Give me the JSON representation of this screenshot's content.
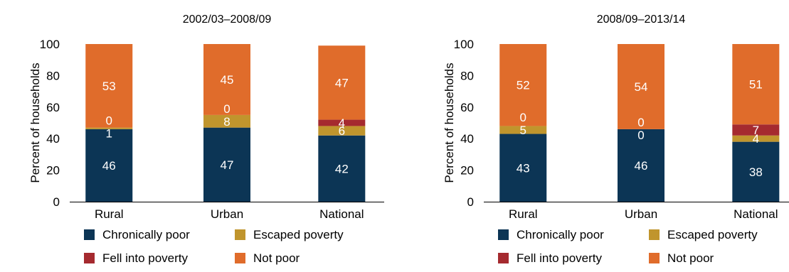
{
  "colors": {
    "chronically_poor": "#0c3555",
    "escaped_poverty": "#c0952d",
    "fell_into_poverty": "#a52a2f",
    "not_poor": "#e06c2b"
  },
  "legend": [
    {
      "key": "chronically_poor",
      "label": "Chronically poor"
    },
    {
      "key": "escaped_poverty",
      "label": "Escaped poverty"
    },
    {
      "key": "fell_into_poverty",
      "label": "Fell into poverty"
    },
    {
      "key": "not_poor",
      "label": "Not poor"
    }
  ],
  "chart_data": [
    {
      "type": "bar",
      "stacked": true,
      "title": "2002/03–2008/09",
      "ylabel": "Percent of households",
      "ylim": [
        0,
        100
      ],
      "yticks": [
        "0",
        "20",
        "40",
        "60",
        "80",
        "100"
      ],
      "categories": [
        "Rural",
        "Urban",
        "National"
      ],
      "series": [
        {
          "name": "Chronically poor",
          "color_key": "chronically_poor",
          "values": [
            46,
            47,
            42
          ],
          "labels": [
            "46",
            "47",
            "42"
          ]
        },
        {
          "name": "Escaped poverty",
          "color_key": "escaped_poverty",
          "values": [
            1,
            8,
            6
          ],
          "labels": [
            "1",
            "8",
            "6"
          ]
        },
        {
          "name": "Fell into poverty",
          "color_key": "fell_into_poverty",
          "values": [
            0,
            0,
            4
          ],
          "labels": [
            "0",
            "0",
            "4"
          ]
        },
        {
          "name": "Not poor",
          "color_key": "not_poor",
          "values": [
            53,
            45,
            47
          ],
          "labels": [
            "53",
            "45",
            "47"
          ]
        }
      ],
      "legend_position": "bottom"
    },
    {
      "type": "bar",
      "stacked": true,
      "title": "2008/09–2013/14",
      "ylabel": "Percent of households",
      "ylim": [
        0,
        100
      ],
      "yticks": [
        "0",
        "20",
        "40",
        "60",
        "80",
        "100"
      ],
      "categories": [
        "Rural",
        "Urban",
        "National"
      ],
      "series": [
        {
          "name": "Chronically poor",
          "color_key": "chronically_poor",
          "values": [
            43,
            46,
            38
          ],
          "labels": [
            "43",
            "46",
            "38"
          ]
        },
        {
          "name": "Escaped poverty",
          "color_key": "escaped_poverty",
          "values": [
            5,
            0,
            4
          ],
          "labels": [
            "5",
            "0",
            "4"
          ]
        },
        {
          "name": "Fell into poverty",
          "color_key": "fell_into_poverty",
          "values": [
            0,
            0,
            7
          ],
          "labels": [
            "0",
            "0",
            "7"
          ]
        },
        {
          "name": "Not poor",
          "color_key": "not_poor",
          "values": [
            52,
            54,
            51
          ],
          "labels": [
            "52",
            "54",
            "51"
          ]
        }
      ],
      "legend_position": "bottom"
    }
  ]
}
